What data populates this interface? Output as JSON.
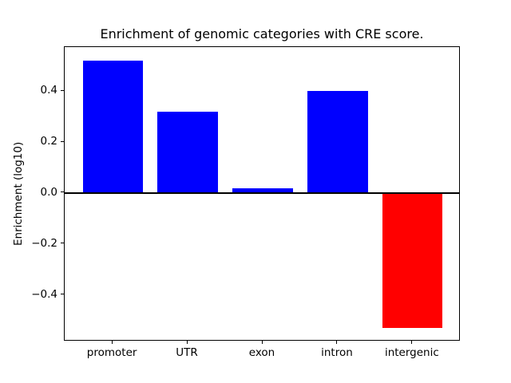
{
  "figure": {
    "background": "#ffffff"
  },
  "chart_data": {
    "type": "bar",
    "title": "Enrichment of genomic categories with CRE score.",
    "ylabel": "Enrichment (log10)",
    "categories": [
      "promoter",
      "UTR",
      "exon",
      "intron",
      "intergenic"
    ],
    "values": [
      0.52,
      0.32,
      0.02,
      0.4,
      -0.53
    ],
    "bar_colors": [
      "#0000ff",
      "#0000ff",
      "#0000ff",
      "#0000ff",
      "#ff0000"
    ],
    "positive_color": "#0000ff",
    "negative_color": "#ff0000",
    "yticks": [
      0.4,
      0.2,
      0.0,
      -0.2,
      -0.4
    ],
    "ytick_labels": [
      "0.4",
      "0.2",
      "0.0",
      "−0.2",
      "−0.4"
    ],
    "ylim": [
      -0.5825,
      0.5725
    ],
    "bar_width_fraction": 0.8,
    "zero_line": {
      "value": 0.0,
      "color": "#000000",
      "thickness_px": 2.5
    },
    "grid": false,
    "legend_visible": false,
    "spine_color": "#000000"
  }
}
